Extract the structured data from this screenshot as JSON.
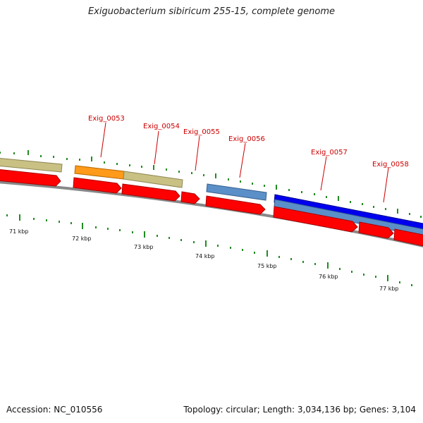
{
  "title": "Exiguobacterium sibiricum 255-15, complete genome",
  "footer": {
    "accession": "Accession: NC_010556",
    "summary": "Topology: circular; Length: 3,034,136 bp; Genes: 3,104"
  },
  "gene_labels": [
    "Exig_0053",
    "Exig_0054",
    "Exig_0055",
    "Exig_0056",
    "Exig_0057",
    "Exig_0058"
  ],
  "kbp_labels": [
    "71 kbp",
    "72 kbp",
    "73 kbp",
    "74 kbp",
    "75 kbp",
    "76 kbp",
    "77 kbp"
  ],
  "colors": {
    "cds": "#ff0000",
    "khaki": "#c9c184",
    "orange": "#ff9a1a",
    "steel": "#5b8fc8",
    "blue": "#0000ee",
    "tick": "#228b22",
    "backbone": "#888888",
    "label": "#cc0000"
  }
}
